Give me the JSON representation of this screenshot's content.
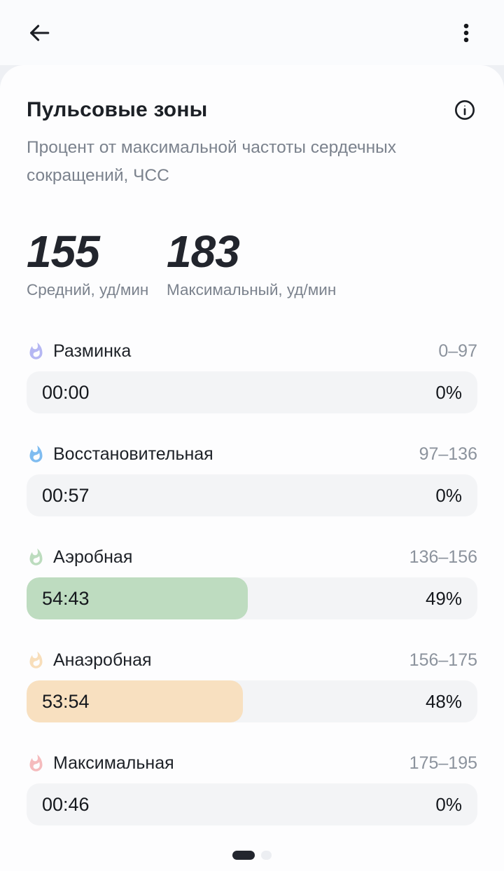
{
  "appbar": {
    "back_icon": "arrow-left",
    "menu_icon": "kebab-vertical"
  },
  "card": {
    "title": "Пульсовые зоны",
    "info_icon": "info-circle",
    "subtitle": "Процент от максимальной частоты сердечных сокращений, ЧСС"
  },
  "stats": [
    {
      "value": "155",
      "label": "Средний, уд/мин"
    },
    {
      "value": "183",
      "label": "Максимальный, уд/мин"
    }
  ],
  "zones": [
    {
      "name": "Разминка",
      "range": "0–97",
      "time": "00:00",
      "percent_label": "0%",
      "percent": 0,
      "icon_color": "#b5b7f3",
      "bar_fill_color": null
    },
    {
      "name": "Восстановительная",
      "range": "97–136",
      "time": "00:57",
      "percent_label": "0%",
      "percent": 0,
      "icon_color": "#7fbcf0",
      "bar_fill_color": null
    },
    {
      "name": "Аэробная",
      "range": "136–156",
      "time": "54:43",
      "percent_label": "49%",
      "percent": 49,
      "icon_color": "#bcdcbe",
      "bar_fill_color": "#bedcc0"
    },
    {
      "name": "Анаэробная",
      "range": "156–175",
      "time": "53:54",
      "percent_label": "48%",
      "percent": 48,
      "icon_color": "#f8deba",
      "bar_fill_color": "#f8e0c0"
    },
    {
      "name": "Максимальная",
      "range": "175–195",
      "time": "00:46",
      "percent_label": "0%",
      "percent": 0,
      "icon_color": "#f5bbbd",
      "bar_fill_color": null
    }
  ],
  "pager": {
    "pages": 2,
    "active_page": 1
  },
  "colors": {
    "text_dark": "#1d2127",
    "text_gray": "#7b828d",
    "range_gray": "#8c939d",
    "bar_bg": "#f3f4f6",
    "card_bg": "#fdfdfe",
    "behind_card_bg": "#eef0f4",
    "indicator_active": "#23262e",
    "indicator_inactive": "#eceef2"
  }
}
